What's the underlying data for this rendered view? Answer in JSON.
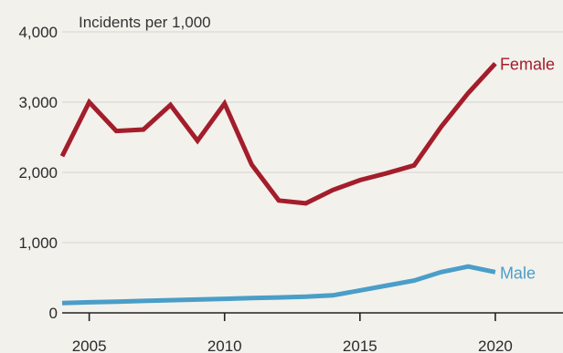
{
  "chart_data": {
    "type": "line",
    "title": "",
    "ylabel": "Incidents per 1,000",
    "xlabel": "",
    "xlim": [
      2004,
      2022.5
    ],
    "ylim": [
      0,
      4000
    ],
    "grid": true,
    "x_ticks": [
      {
        "value": 2005,
        "label": "2005"
      },
      {
        "value": 2010,
        "label": "2010"
      },
      {
        "value": 2015,
        "label": "2015"
      },
      {
        "value": 2020,
        "label": "2020"
      }
    ],
    "y_ticks": [
      {
        "value": 0,
        "label": "0"
      },
      {
        "value": 1000,
        "label": "1,000"
      },
      {
        "value": 2000,
        "label": "2,000"
      },
      {
        "value": 3000,
        "label": "3,000"
      },
      {
        "value": 4000,
        "label": "4,000"
      }
    ],
    "x": [
      2004,
      2005,
      2006,
      2007,
      2008,
      2009,
      2010,
      2011,
      2012,
      2013,
      2014,
      2015,
      2016,
      2017,
      2018,
      2019,
      2020
    ],
    "series": [
      {
        "name": "Female",
        "color": "#a31d2b",
        "values": [
          2230,
          3000,
          2590,
          2610,
          2960,
          2450,
          2980,
          2110,
          1600,
          1560,
          1750,
          1890,
          1990,
          2100,
          2650,
          3130,
          3550
        ]
      },
      {
        "name": "Male",
        "color": "#4a9ec8",
        "values": [
          140,
          150,
          160,
          170,
          180,
          190,
          200,
          210,
          220,
          230,
          250,
          320,
          390,
          460,
          580,
          660,
          580
        ]
      }
    ]
  }
}
